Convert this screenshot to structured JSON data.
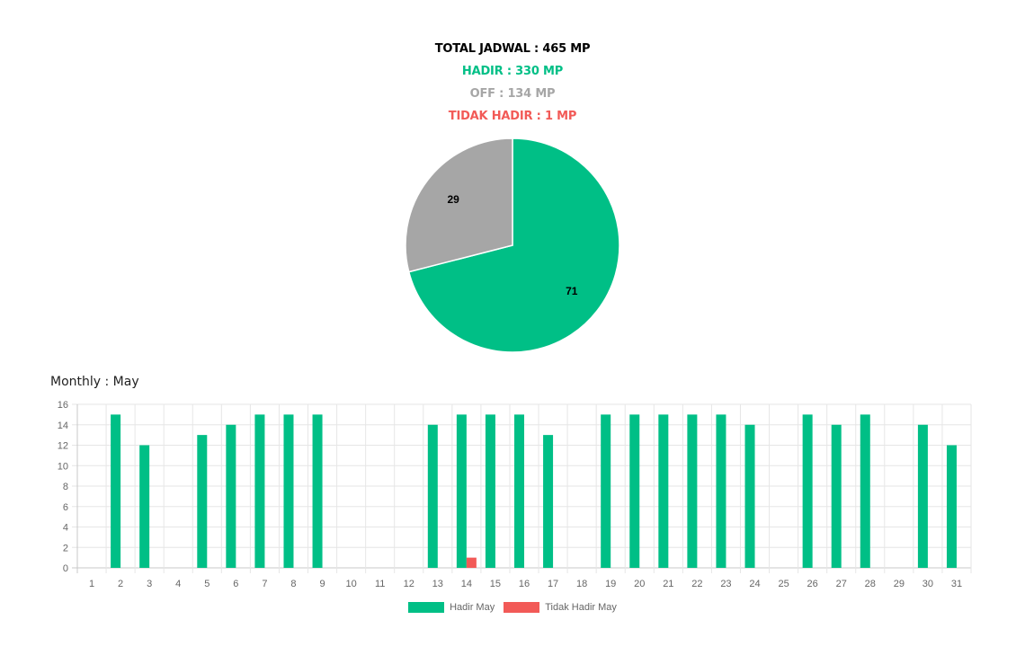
{
  "summary": {
    "total": "TOTAL JADWAL : 465 MP",
    "hadir": "HADIR : 330 MP",
    "off": "OFF : 134 MP",
    "tidak_hadir": "TIDAK HADIR : 1 MP"
  },
  "colors": {
    "hadir": "#00bf86",
    "off": "#a6a6a6",
    "tidak_hadir": "#f25a57",
    "total": "#000000",
    "grid": "#e6e6e6",
    "axis_text": "#666666"
  },
  "chart_data": [
    {
      "type": "pie",
      "slices": [
        {
          "label": "71",
          "value": 71,
          "color": "#00bf86"
        },
        {
          "label": "29",
          "value": 29,
          "color": "#a6a6a6"
        }
      ]
    },
    {
      "type": "bar",
      "title": "Monthly : May",
      "categories": [
        "1",
        "2",
        "3",
        "4",
        "5",
        "6",
        "7",
        "8",
        "9",
        "10",
        "11",
        "12",
        "13",
        "14",
        "15",
        "16",
        "17",
        "18",
        "19",
        "20",
        "21",
        "22",
        "23",
        "24",
        "25",
        "26",
        "27",
        "28",
        "29",
        "30",
        "31"
      ],
      "series": [
        {
          "name": "Hadir May",
          "color": "#00bf86",
          "values": [
            0,
            15,
            12,
            0,
            13,
            14,
            15,
            15,
            15,
            0,
            0,
            0,
            14,
            15,
            15,
            15,
            13,
            0,
            15,
            15,
            15,
            15,
            15,
            14,
            0,
            15,
            14,
            15,
            0,
            14,
            12
          ]
        },
        {
          "name": "Tidak Hadir May",
          "color": "#f25a57",
          "values": [
            0,
            0,
            0,
            0,
            0,
            0,
            0,
            0,
            0,
            0,
            0,
            0,
            0,
            1,
            0,
            0,
            0,
            0,
            0,
            0,
            0,
            0,
            0,
            0,
            0,
            0,
            0,
            0,
            0,
            0,
            0
          ]
        }
      ],
      "ylim": [
        0,
        16
      ],
      "yticks": [
        "0",
        "2",
        "4",
        "6",
        "8",
        "10",
        "12",
        "14",
        "16"
      ],
      "grid": true,
      "legend_position": "bottom"
    }
  ]
}
